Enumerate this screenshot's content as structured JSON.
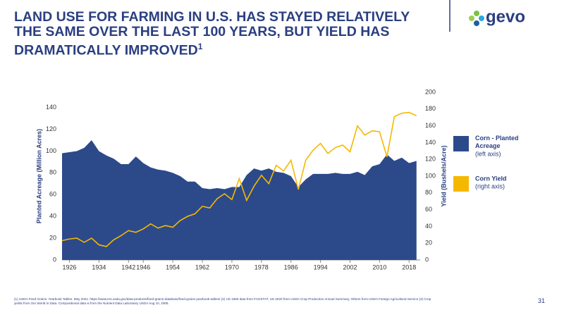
{
  "header": {
    "title": "LAND USE FOR FARMING IN U.S. HAS STAYED RELATIVELY THE SAME OVER THE LAST 100 YEARS, BUT YIELD HAS DRAMATICALLY IMPROVED",
    "title_superscript": "1"
  },
  "logo": {
    "text": "gevo"
  },
  "chart_data": {
    "type": "combo",
    "x": [
      1924,
      1926,
      1928,
      1930,
      1932,
      1934,
      1936,
      1938,
      1940,
      1942,
      1944,
      1946,
      1948,
      1950,
      1952,
      1954,
      1956,
      1958,
      1960,
      1962,
      1964,
      1966,
      1968,
      1970,
      1972,
      1974,
      1976,
      1978,
      1980,
      1982,
      1984,
      1986,
      1988,
      1990,
      1992,
      1994,
      1996,
      1998,
      2000,
      2002,
      2004,
      2006,
      2008,
      2010,
      2012,
      2014,
      2016,
      2018,
      2020
    ],
    "xlim": [
      1924,
      2021
    ],
    "xticks": [
      1926,
      1934,
      1942,
      1946,
      1954,
      1962,
      1970,
      1978,
      1986,
      1994,
      2002,
      2010,
      2018
    ],
    "ylim": [
      0,
      154
    ],
    "yticks": [
      0,
      20,
      40,
      60,
      80,
      100,
      120,
      140
    ],
    "y2lim": [
      0,
      200
    ],
    "y2ticks": [
      0,
      20,
      40,
      60,
      80,
      100,
      120,
      140,
      160,
      180,
      200
    ],
    "ylabel": "Planted Acreage (Million Acres)",
    "y2label": "Yield (Bushels/Acre)",
    "series": [
      {
        "name": "Corn - Planted Acreage",
        "axis_note": "(left axis)",
        "type": "area",
        "color": "#2c4a8a",
        "values": [
          98,
          99,
          100,
          103,
          110,
          100,
          96,
          93,
          88,
          88,
          95,
          89,
          85,
          83,
          82,
          80,
          77,
          72,
          72,
          66,
          65,
          66,
          65,
          67,
          67,
          78,
          84,
          82,
          84,
          81,
          80,
          77,
          67,
          74,
          79,
          79,
          79,
          80,
          79,
          79,
          81,
          78,
          86,
          88,
          97,
          91,
          94,
          89,
          91
        ]
      },
      {
        "name": "Corn Yield",
        "axis_note": "(right axis)",
        "type": "line",
        "axis": "y2",
        "color": "#f5b800",
        "values": [
          23,
          25,
          26,
          21,
          26,
          18,
          16,
          24,
          29,
          35,
          33,
          37,
          43,
          38,
          41,
          39,
          47,
          52,
          55,
          64,
          62,
          73,
          79,
          72,
          97,
          71,
          88,
          101,
          91,
          113,
          106,
          119,
          84,
          119,
          131,
          139,
          127,
          134,
          137,
          129,
          160,
          149,
          154,
          153,
          123,
          171,
          175,
          176,
          172
        ]
      }
    ]
  },
  "footnote": "(1) USDA Feed Grains: Yearbook Tables. May 2021. https://www.ers.usda.gov/data-products/feed-grains-database/feed-grains-yearbook-tables/ (2) US 1960 data from FAOSTAT, US 2020 from USDA Crop Production Annual Summary, Others from USDA Foreign Agricultural Service (3) Crop yields from Our World in Data. Compositional data is from the Nutrient Data Laboratory USDA Aug 10, 2005.",
  "page_number": "31"
}
